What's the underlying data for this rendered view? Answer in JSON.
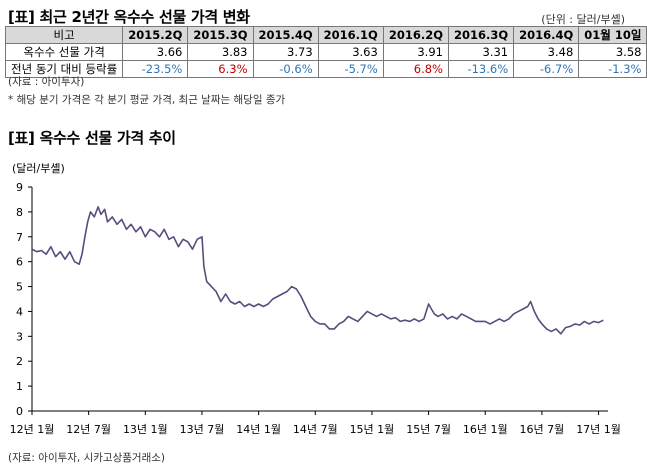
{
  "table_title": "[표] 최근 2년간 옥수수 선물 가격 변화",
  "unit_note": "(단위 : 달러/부셸)",
  "table": {
    "header": [
      "비고",
      "2015.2Q",
      "2015.3Q",
      "2015.4Q",
      "2016.1Q",
      "2016.2Q",
      "2016.3Q",
      "2016.4Q",
      "01월 10일"
    ],
    "rows": [
      {
        "label": "옥수수 선물 가격",
        "cells": [
          {
            "v": "3.66",
            "c": ""
          },
          {
            "v": "3.83",
            "c": ""
          },
          {
            "v": "3.73",
            "c": ""
          },
          {
            "v": "3.63",
            "c": ""
          },
          {
            "v": "3.91",
            "c": ""
          },
          {
            "v": "3.31",
            "c": ""
          },
          {
            "v": "3.48",
            "c": ""
          },
          {
            "v": "3.58",
            "c": ""
          }
        ]
      },
      {
        "label": "전년 동기 대비 등락률",
        "cells": [
          {
            "v": "-23.5%",
            "c": "neg"
          },
          {
            "v": "6.3%",
            "c": "pos"
          },
          {
            "v": "-0.6%",
            "c": "neg"
          },
          {
            "v": "-5.7%",
            "c": "neg"
          },
          {
            "v": "6.8%",
            "c": "pos"
          },
          {
            "v": "-13.6%",
            "c": "neg"
          },
          {
            "v": "-6.7%",
            "c": "neg"
          },
          {
            "v": "-1.3%",
            "c": "neg"
          }
        ]
      }
    ]
  },
  "source1": "(자료 : 아이투자)",
  "footnote": "* 해당 분기 가격은 각 분기 평균 가격, 최근 날짜는 해당일 종가",
  "chart_title": "[표] 옥수수 선물 가격 추이",
  "source2": "(자료: 아이투자, 시카고상품거래소)",
  "colors": {
    "line": "#5b4a7e",
    "positive": "#c00000",
    "negative": "#2e75b6",
    "header_bg": "#d9d9d9"
  },
  "chart_data": {
    "type": "line",
    "ylabel": "(달러/부셸)",
    "ylim": [
      0,
      9
    ],
    "yticks": [
      0,
      1,
      2,
      3,
      4,
      5,
      6,
      7,
      8,
      9
    ],
    "xlim": [
      0,
      61
    ],
    "xticks": [
      {
        "x": 0,
        "label": "12년 1월"
      },
      {
        "x": 6,
        "label": "12년 7월"
      },
      {
        "x": 12,
        "label": "13년 1월"
      },
      {
        "x": 18,
        "label": "13년 7월"
      },
      {
        "x": 24,
        "label": "14년 1월"
      },
      {
        "x": 30,
        "label": "14년 7월"
      },
      {
        "x": 36,
        "label": "15년 1월"
      },
      {
        "x": 42,
        "label": "15년 7월"
      },
      {
        "x": 48,
        "label": "16년 1월"
      },
      {
        "x": 54,
        "label": "16년 7월"
      },
      {
        "x": 60,
        "label": "17년 1월"
      }
    ],
    "grid": false,
    "series": [
      {
        "name": "",
        "points": [
          [
            0,
            6.5
          ],
          [
            0.5,
            6.4
          ],
          [
            1,
            6.45
          ],
          [
            1.5,
            6.3
          ],
          [
            2,
            6.6
          ],
          [
            2.5,
            6.2
          ],
          [
            3,
            6.4
          ],
          [
            3.5,
            6.1
          ],
          [
            4,
            6.4
          ],
          [
            4.5,
            6.0
          ],
          [
            5,
            5.9
          ],
          [
            5.3,
            6.3
          ],
          [
            5.6,
            7.0
          ],
          [
            5.9,
            7.6
          ],
          [
            6.2,
            8.0
          ],
          [
            6.6,
            7.8
          ],
          [
            7,
            8.2
          ],
          [
            7.3,
            7.9
          ],
          [
            7.7,
            8.1
          ],
          [
            8,
            7.6
          ],
          [
            8.5,
            7.8
          ],
          [
            9,
            7.5
          ],
          [
            9.5,
            7.7
          ],
          [
            10,
            7.3
          ],
          [
            10.5,
            7.5
          ],
          [
            11,
            7.2
          ],
          [
            11.5,
            7.4
          ],
          [
            12,
            7.0
          ],
          [
            12.5,
            7.3
          ],
          [
            13,
            7.2
          ],
          [
            13.5,
            7.0
          ],
          [
            14,
            7.3
          ],
          [
            14.5,
            6.9
          ],
          [
            15,
            7.0
          ],
          [
            15.5,
            6.6
          ],
          [
            16,
            6.9
          ],
          [
            16.5,
            6.8
          ],
          [
            17,
            6.5
          ],
          [
            17.5,
            6.9
          ],
          [
            18,
            7.0
          ],
          [
            18.2,
            5.8
          ],
          [
            18.5,
            5.2
          ],
          [
            19,
            5.0
          ],
          [
            19.5,
            4.8
          ],
          [
            20,
            4.4
          ],
          [
            20.5,
            4.7
          ],
          [
            21,
            4.4
          ],
          [
            21.5,
            4.3
          ],
          [
            22,
            4.4
          ],
          [
            22.5,
            4.2
          ],
          [
            23,
            4.3
          ],
          [
            23.5,
            4.2
          ],
          [
            24,
            4.3
          ],
          [
            24.5,
            4.2
          ],
          [
            25,
            4.3
          ],
          [
            25.5,
            4.5
          ],
          [
            26,
            4.6
          ],
          [
            26.5,
            4.7
          ],
          [
            27,
            4.8
          ],
          [
            27.5,
            5.0
          ],
          [
            28,
            4.9
          ],
          [
            28.5,
            4.6
          ],
          [
            29,
            4.2
          ],
          [
            29.5,
            3.8
          ],
          [
            30,
            3.6
          ],
          [
            30.5,
            3.5
          ],
          [
            31,
            3.5
          ],
          [
            31.5,
            3.3
          ],
          [
            32,
            3.3
          ],
          [
            32.5,
            3.5
          ],
          [
            33,
            3.6
          ],
          [
            33.5,
            3.8
          ],
          [
            34,
            3.7
          ],
          [
            34.5,
            3.6
          ],
          [
            35,
            3.8
          ],
          [
            35.5,
            4.0
          ],
          [
            36,
            3.9
          ],
          [
            36.5,
            3.8
          ],
          [
            37,
            3.9
          ],
          [
            37.5,
            3.8
          ],
          [
            38,
            3.7
          ],
          [
            38.5,
            3.75
          ],
          [
            39,
            3.6
          ],
          [
            39.5,
            3.65
          ],
          [
            40,
            3.6
          ],
          [
            40.5,
            3.7
          ],
          [
            41,
            3.6
          ],
          [
            41.5,
            3.7
          ],
          [
            42,
            4.3
          ],
          [
            42.3,
            4.1
          ],
          [
            42.6,
            3.9
          ],
          [
            43,
            3.8
          ],
          [
            43.5,
            3.9
          ],
          [
            44,
            3.7
          ],
          [
            44.5,
            3.8
          ],
          [
            45,
            3.7
          ],
          [
            45.5,
            3.9
          ],
          [
            46,
            3.8
          ],
          [
            46.5,
            3.7
          ],
          [
            47,
            3.6
          ],
          [
            47.5,
            3.6
          ],
          [
            48,
            3.6
          ],
          [
            48.5,
            3.5
          ],
          [
            49,
            3.6
          ],
          [
            49.5,
            3.7
          ],
          [
            50,
            3.6
          ],
          [
            50.5,
            3.7
          ],
          [
            51,
            3.9
          ],
          [
            51.5,
            4.0
          ],
          [
            52,
            4.1
          ],
          [
            52.5,
            4.2
          ],
          [
            52.8,
            4.4
          ],
          [
            53.2,
            4.0
          ],
          [
            53.6,
            3.7
          ],
          [
            54,
            3.5
          ],
          [
            54.5,
            3.3
          ],
          [
            55,
            3.2
          ],
          [
            55.5,
            3.3
          ],
          [
            56,
            3.1
          ],
          [
            56.5,
            3.35
          ],
          [
            57,
            3.4
          ],
          [
            57.5,
            3.5
          ],
          [
            58,
            3.45
          ],
          [
            58.5,
            3.6
          ],
          [
            59,
            3.5
          ],
          [
            59.5,
            3.6
          ],
          [
            60,
            3.55
          ],
          [
            60.5,
            3.65
          ]
        ]
      }
    ]
  }
}
